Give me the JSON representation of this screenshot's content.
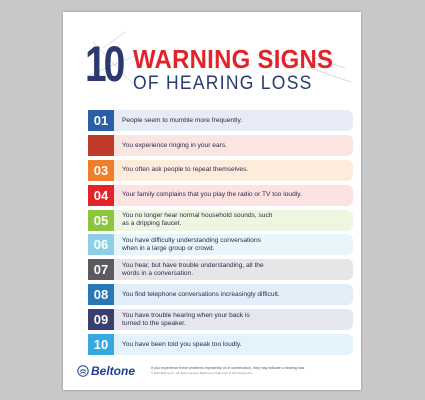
{
  "header": {
    "number": "10",
    "title_line1": "WARNING SIGNS",
    "title_line2": "OF HEARING LOSS"
  },
  "colors": {
    "navy": "#2a3a6e",
    "red": "#e2232a"
  },
  "items": [
    {
      "num": "01",
      "text": "People seem to mumble more frequently.",
      "color": "#2b5ea8",
      "bg": "#e7ebf5"
    },
    {
      "num": "",
      "text": "You experience ringing in your ears.",
      "color": "#c0392b",
      "bg": "#fbe5e3"
    },
    {
      "num": "03",
      "text": "You often ask people to repeat themselves.",
      "color": "#f07d2a",
      "bg": "#fdebdc"
    },
    {
      "num": "04",
      "text": "Your family complains that you play the radio or TV too loudly.",
      "color": "#e2232a",
      "bg": "#fce3e2"
    },
    {
      "num": "05",
      "text": "You no longer hear normal household sounds, such\nas a dripping faucet.",
      "color": "#8cc63e",
      "bg": "#eef6e2"
    },
    {
      "num": "06",
      "text": "You have difficulty understanding conversations\nwhen in a large group or crowd.",
      "color": "#8ecfe8",
      "bg": "#e8f5fb"
    },
    {
      "num": "07",
      "text": "You hear, but have trouble understanding, all the\nwords in a conversation.",
      "color": "#5b5b5f",
      "bg": "#e6e6e8"
    },
    {
      "num": "08",
      "text": "You find telephone conversations increasingly difficult.",
      "color": "#2678b8",
      "bg": "#e2eef7"
    },
    {
      "num": "09",
      "text": "You have trouble hearing when your back is\nturned to the speaker.",
      "color": "#3a3f6e",
      "bg": "#e5e6ee"
    },
    {
      "num": "10",
      "text": "You have been told you speak too loudly.",
      "color": "#35a9e0",
      "bg": "#e2f3fb"
    }
  ],
  "footer": {
    "logo": "Beltone",
    "message": "If you experience these problems repeatedly on in combination, they may indicate a hearing loss.",
    "fine_print": "© 2011 Beltone Inc. All rights reserved. Beltone is a trademark of GN Hearing A/S."
  }
}
